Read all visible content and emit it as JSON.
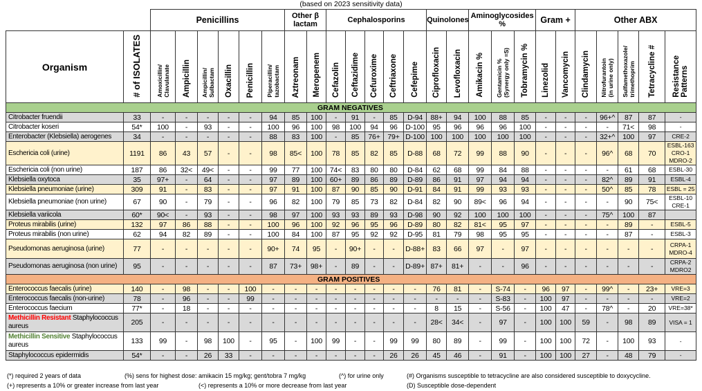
{
  "title": "(based on 2023 sensitivity data)",
  "colors": {
    "gram_negative_band": "#a9d08e",
    "gram_positive_band": "#f4b183",
    "gray": "#d9d9d9",
    "cream": "#fff2cc",
    "white": "#ffffff",
    "mrsa_red": "#ff0000",
    "mssa_green": "#548235"
  },
  "groups": [
    {
      "label": "Penicillins",
      "span": 6,
      "big": true
    },
    {
      "label": "Other β lactam",
      "span": 2
    },
    {
      "label": "Cephalosporins",
      "span": 5
    },
    {
      "label": "Quinolones",
      "span": 2
    },
    {
      "label": "Aminoglycosides %",
      "span": 3
    },
    {
      "label": "Gram +",
      "span": 2,
      "big": true
    },
    {
      "label": "Other ABX",
      "span": 5,
      "big": true
    }
  ],
  "header": {
    "organism": "Organism",
    "columns": [
      {
        "label": "# of ISOLATES",
        "size": "lg"
      },
      {
        "label": "Amoxicillin/\nClavulanate",
        "size": "sm"
      },
      {
        "label": "Ampicillin"
      },
      {
        "label": "Ampicillin/\nSulbactam",
        "size": "sm"
      },
      {
        "label": "Oxacillin"
      },
      {
        "label": "Penicillin"
      },
      {
        "label": "Piperacillin/\ntazobactam",
        "size": "sm"
      },
      {
        "label": "Aztreonam"
      },
      {
        "label": "Meropenem"
      },
      {
        "label": "Cefazolin"
      },
      {
        "label": "Ceftazidime"
      },
      {
        "label": "Cefuroxime"
      },
      {
        "label": "Ceftriaxone"
      },
      {
        "label": "Cefepime"
      },
      {
        "label": "Ciprofloxacin"
      },
      {
        "label": "Levofloxacin"
      },
      {
        "label": "Amikacin %"
      },
      {
        "label": "Gentamicin %\n(Synergy only =S)",
        "size": "sm"
      },
      {
        "label": "Tobramycin %"
      },
      {
        "label": "Linezolid"
      },
      {
        "label": "Vancomycin"
      },
      {
        "label": "Clindamycin"
      },
      {
        "label": "Nitrofurantoin\n(in urine only)",
        "size": "sm"
      },
      {
        "label": "Sulfamethoxazole/\ntrimethoprim",
        "size": "sm"
      },
      {
        "label": "Tetracycline #"
      },
      {
        "label": "Resistance\nPatterns"
      }
    ]
  },
  "sections": [
    {
      "label": "GRAM NEGATIVES",
      "kind": "neg",
      "rows": [
        {
          "organism": "Citrobacter fruendii",
          "shade": "gray",
          "values": [
            "33",
            "-",
            "-",
            "-",
            "-",
            "-",
            "94",
            "85",
            "100",
            "-",
            "91",
            "-",
            "85",
            "D-94",
            "88+",
            "94",
            "100",
            "88",
            "85",
            "-",
            "-",
            "-",
            "96+^",
            "87",
            "87",
            "-"
          ]
        },
        {
          "organism": "Citrobacter koseri",
          "shade": "white",
          "values": [
            "54*",
            "100",
            "-",
            "93",
            "-",
            "-",
            "100",
            "96",
            "100",
            "98",
            "100",
            "94",
            "96",
            "D-100",
            "95",
            "96",
            "96",
            "96",
            "100",
            "-",
            "-",
            "-",
            "-",
            "71<",
            "98",
            "-"
          ]
        },
        {
          "organism": "Enterobacter (Klebsiella) aerogenes",
          "shade": "gray",
          "values": [
            "34",
            "-",
            "-",
            "-",
            "-",
            "-",
            "88",
            "83",
            "100",
            "-",
            "85",
            "76+",
            "79+",
            "D-100",
            "100",
            "100",
            "100",
            "100",
            "100",
            "-",
            "-",
            "-",
            "32+^",
            "100",
            "97",
            "CRE-2"
          ]
        },
        {
          "organism": "Eschericia coli (urine)",
          "shade": "cream",
          "values": [
            "1191",
            "86",
            "43",
            "57",
            "-",
            "-",
            "98",
            "85<",
            "100",
            "78",
            "85",
            "82",
            "85",
            "D-88",
            "68",
            "72",
            "99",
            "88",
            "90",
            "-",
            "-",
            "-",
            "96^",
            "68",
            "70",
            "ESBL-163\nCRO-1\nMDRO-2"
          ]
        },
        {
          "organism": "Eschericia coli (non urine)",
          "shade": "white",
          "values": [
            "187",
            "86",
            "32<",
            "49<",
            "-",
            "-",
            "99",
            "77",
            "100",
            "74<",
            "83",
            "80",
            "80",
            "D-84",
            "62",
            "68",
            "99",
            "84",
            "88",
            "-",
            "-",
            "-",
            "-",
            "61",
            "68",
            "ESBL-30"
          ]
        },
        {
          "organism": "Klebsiella oxytoca",
          "shade": "gray",
          "values": [
            "35",
            "97+",
            "-",
            "64",
            "-",
            "-",
            "97",
            "89",
            "100",
            "60+",
            "89",
            "86",
            "89",
            "D-89",
            "86",
            "91",
            "97",
            "94",
            "94",
            "-",
            "-",
            "-",
            "82^",
            "89",
            "91",
            "ESBL-4"
          ]
        },
        {
          "organism": "Klebsiella pneumoniae (urine)",
          "shade": "cream",
          "values": [
            "309",
            "91",
            "-",
            "83",
            "-",
            "-",
            "97",
            "91",
            "100",
            "87",
            "90",
            "85",
            "90",
            "D-91",
            "84",
            "91",
            "99",
            "93",
            "93",
            "-",
            "-",
            "-",
            "50^",
            "85",
            "78",
            "ESBL = 25"
          ]
        },
        {
          "organism": "Klebsiella pneumoniae (non urine)",
          "shade": "white",
          "values": [
            "67",
            "90",
            "-",
            "79",
            "-",
            "-",
            "96",
            "82",
            "100",
            "79",
            "85",
            "73",
            "82",
            "D-84",
            "82",
            "90",
            "89<",
            "96",
            "94",
            "-",
            "-",
            "-",
            "-",
            "90",
            "75<",
            "ESBL-10\nCRE-1"
          ]
        },
        {
          "organism": "Klebsiella variicola",
          "shade": "gray",
          "values": [
            "60*",
            "90<",
            "-",
            "93",
            "-",
            "-",
            "98",
            "97",
            "100",
            "93",
            "93",
            "89",
            "93",
            "D-98",
            "90",
            "92",
            "100",
            "100",
            "100",
            "-",
            "-",
            "-",
            "75^",
            "100",
            "87",
            ""
          ]
        },
        {
          "organism": "Proteus mirabilis (urine)",
          "shade": "cream",
          "values": [
            "132",
            "97",
            "86",
            "88",
            "-",
            "-",
            "100",
            "96",
            "100",
            "92",
            "96",
            "95",
            "96",
            "D-89",
            "80",
            "82",
            "81<",
            "95",
            "97",
            "-",
            "-",
            "-",
            "-",
            "89",
            "-",
            "ESBL-5"
          ]
        },
        {
          "organism": "Proteus mirabilis (non urine)",
          "shade": "white",
          "values": [
            "62",
            "94",
            "82",
            "89",
            "-",
            "-",
            "100",
            "84",
            "100",
            "87",
            "95",
            "92",
            "92",
            "D-95",
            "81",
            "79",
            "98",
            "95",
            "95",
            "-",
            "-",
            "-",
            "-",
            "87",
            "-",
            "ESBL-3"
          ]
        },
        {
          "organism": "Pseudomonas aeruginosa (urine)",
          "shade": "cream",
          "values": [
            "77",
            "-",
            "-",
            "-",
            "-",
            "-",
            "90+",
            "74",
            "95",
            "-",
            "90+",
            "-",
            "-",
            "D-88+",
            "83",
            "66",
            "97",
            "-",
            "97",
            "-",
            "-",
            "-",
            "-",
            "-",
            "-",
            "CRPA-1\nMDRO-4"
          ]
        },
        {
          "organism": "Pseudomonas aeruginosa (non urine)",
          "shade": "gray",
          "values": [
            "95",
            "-",
            "-",
            "-",
            "-",
            "-",
            "87",
            "73+",
            "98+",
            "-",
            "89",
            "-",
            "-",
            "D-89+",
            "87+",
            "81+",
            "-",
            "-",
            "96",
            "-",
            "-",
            "-",
            "-",
            "-",
            "-",
            "CRPA-2\nMDRO2"
          ]
        }
      ]
    },
    {
      "label": "GRAM POSITIVES",
      "kind": "pos",
      "rows": [
        {
          "organism": "Enterococcus faecalis (urine)",
          "shade": "cream",
          "values": [
            "140",
            "-",
            "98",
            "-",
            "-",
            "100",
            "-",
            "-",
            "-",
            "-",
            "-",
            "-",
            "-",
            "-",
            "76",
            "81",
            "-",
            "S-74",
            "-",
            "96",
            "97",
            "-",
            "99^",
            "-",
            "23+",
            "VRE=3"
          ]
        },
        {
          "organism": "Enterococcus faecalis (non-urine)",
          "shade": "gray",
          "values": [
            "78",
            "-",
            "96",
            "-",
            "-",
            "99",
            "-",
            "-",
            "-",
            "-",
            "-",
            "-",
            "-",
            "-",
            "-",
            "-",
            "-",
            "S-83",
            "-",
            "100",
            "97",
            "-",
            "-",
            "-",
            "-",
            "VRE=2"
          ]
        },
        {
          "organism": "Enterococcus faecium",
          "shade": "white",
          "values": [
            "77*",
            "-",
            "18",
            "-",
            "-",
            "-",
            "-",
            "-",
            "-",
            "-",
            "-",
            "-",
            "-",
            "-",
            "8",
            "15",
            "-",
            "S-56",
            "-",
            "100",
            "47",
            "-",
            "78^",
            "-",
            "20",
            "VRE=38*"
          ]
        },
        {
          "prefix": "Methicillin Resistant",
          "prefix_color": "mrsa_red",
          "organism": " Staphylococcus aureus",
          "shade": "gray",
          "values": [
            "205",
            "-",
            "-",
            "-",
            "-",
            "-",
            "-",
            "-",
            "-",
            "-",
            "-",
            "-",
            "-",
            "-",
            "28<",
            "34<",
            "-",
            "97",
            "-",
            "100",
            "100",
            "59",
            "-",
            "98",
            "89",
            "VISA = 1"
          ]
        },
        {
          "prefix": "Methicillin Sensitive",
          "prefix_color": "mssa_green",
          "organism": " Staphylococcus aureus",
          "shade": "white",
          "values": [
            "133",
            "99",
            "-",
            "98",
            "100",
            "-",
            "95",
            "-",
            "100",
            "99",
            "-",
            "-",
            "99",
            "99",
            "80",
            "89",
            "-",
            "99",
            "-",
            "100",
            "100",
            "72",
            "-",
            "100",
            "93",
            "-"
          ]
        },
        {
          "organism": "Staphylococcus epidermidis",
          "shade": "gray",
          "values": [
            "54*",
            "-",
            "-",
            "26",
            "33",
            "-",
            "-",
            "-",
            "-",
            "-",
            "-",
            "-",
            "26",
            "26",
            "45",
            "46",
            "-",
            "91",
            "-",
            "100",
            "100",
            "27",
            "-",
            "48",
            "79",
            "-"
          ]
        }
      ]
    }
  ],
  "footnotes": {
    "required": "(*) required 2 years of data",
    "increase": "(+)  represents a 10% or greater increase from last year",
    "highest_dose": "(%) sens for highest dose: amikacin 15 mg/kg; gent/tobra 7 mg/kg",
    "decrease": "(<) represents a 10% or more decrease from last year",
    "urine_only": "(^) for urine only",
    "tetracycline": "(#) Organisms susceptible to tetracycline are also considered susceptible to doxycycline.",
    "dose_dependent": "(D) Susceptible dose-dependent"
  }
}
